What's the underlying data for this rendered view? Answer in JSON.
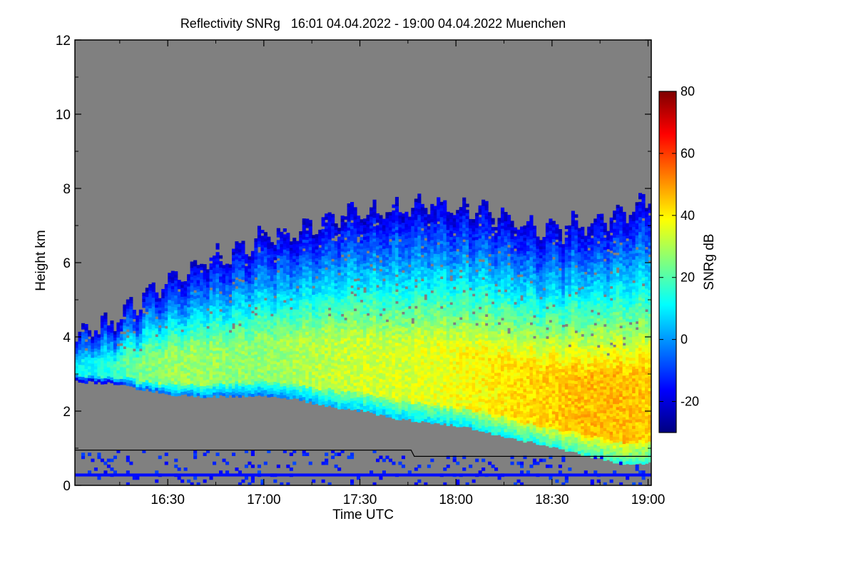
{
  "chart_data": {
    "type": "heatmap",
    "title": "Reflectivity SNRg   16:01 04.04.2022 - 19:00 04.04.2022 Muenchen",
    "xlabel": "Time UTC",
    "ylabel": "Height km",
    "xlim": [
      "16:01",
      "19:01"
    ],
    "ylim": [
      0,
      12
    ],
    "x_ticks": [
      "16:30",
      "17:00",
      "17:30",
      "18:00",
      "18:30",
      "19:00"
    ],
    "x_tick_minutes": [
      29,
      59,
      89,
      119,
      149,
      179
    ],
    "y_ticks": [
      0,
      2,
      4,
      6,
      8,
      10,
      12
    ],
    "colorbar": {
      "label": "SNRg dB",
      "range": [
        -30,
        80
      ],
      "ticks": [
        -20,
        0,
        20,
        40,
        60,
        80
      ],
      "colormap": [
        "#00007f",
        "#0000ff",
        "#007fff",
        "#00ffff",
        "#7fff7f",
        "#ffff00",
        "#ff7f00",
        "#ff0000",
        "#7f0000"
      ]
    },
    "colors": {
      "no_signal": "#808080",
      "background": "#ffffff"
    },
    "cloud": {
      "time_minutes": [
        0,
        10,
        20,
        30,
        40,
        50,
        60,
        70,
        80,
        90,
        100,
        110,
        120,
        130,
        140,
        150,
        160,
        170,
        180
      ],
      "top_km": [
        4.0,
        4.3,
        5.0,
        5.5,
        6.0,
        6.3,
        6.7,
        6.8,
        7.2,
        7.3,
        7.4,
        7.6,
        7.4,
        7.3,
        7.0,
        6.9,
        7.0,
        7.3,
        7.6
      ],
      "base_km": [
        2.8,
        2.75,
        2.6,
        2.45,
        2.4,
        2.4,
        2.4,
        2.3,
        2.1,
        2.0,
        1.8,
        1.7,
        1.6,
        1.4,
        1.2,
        1.0,
        0.8,
        0.6,
        0.6
      ],
      "peak_snr_db": [
        10,
        15,
        25,
        28,
        28,
        27,
        27,
        30,
        32,
        34,
        34,
        36,
        38,
        40,
        42,
        44,
        46,
        46,
        44
      ]
    },
    "boundary_line": {
      "time_minutes": [
        0,
        105,
        106,
        180
      ],
      "height_km": [
        0.95,
        0.95,
        0.78,
        0.78
      ]
    },
    "ground_band_km": 0.28
  }
}
